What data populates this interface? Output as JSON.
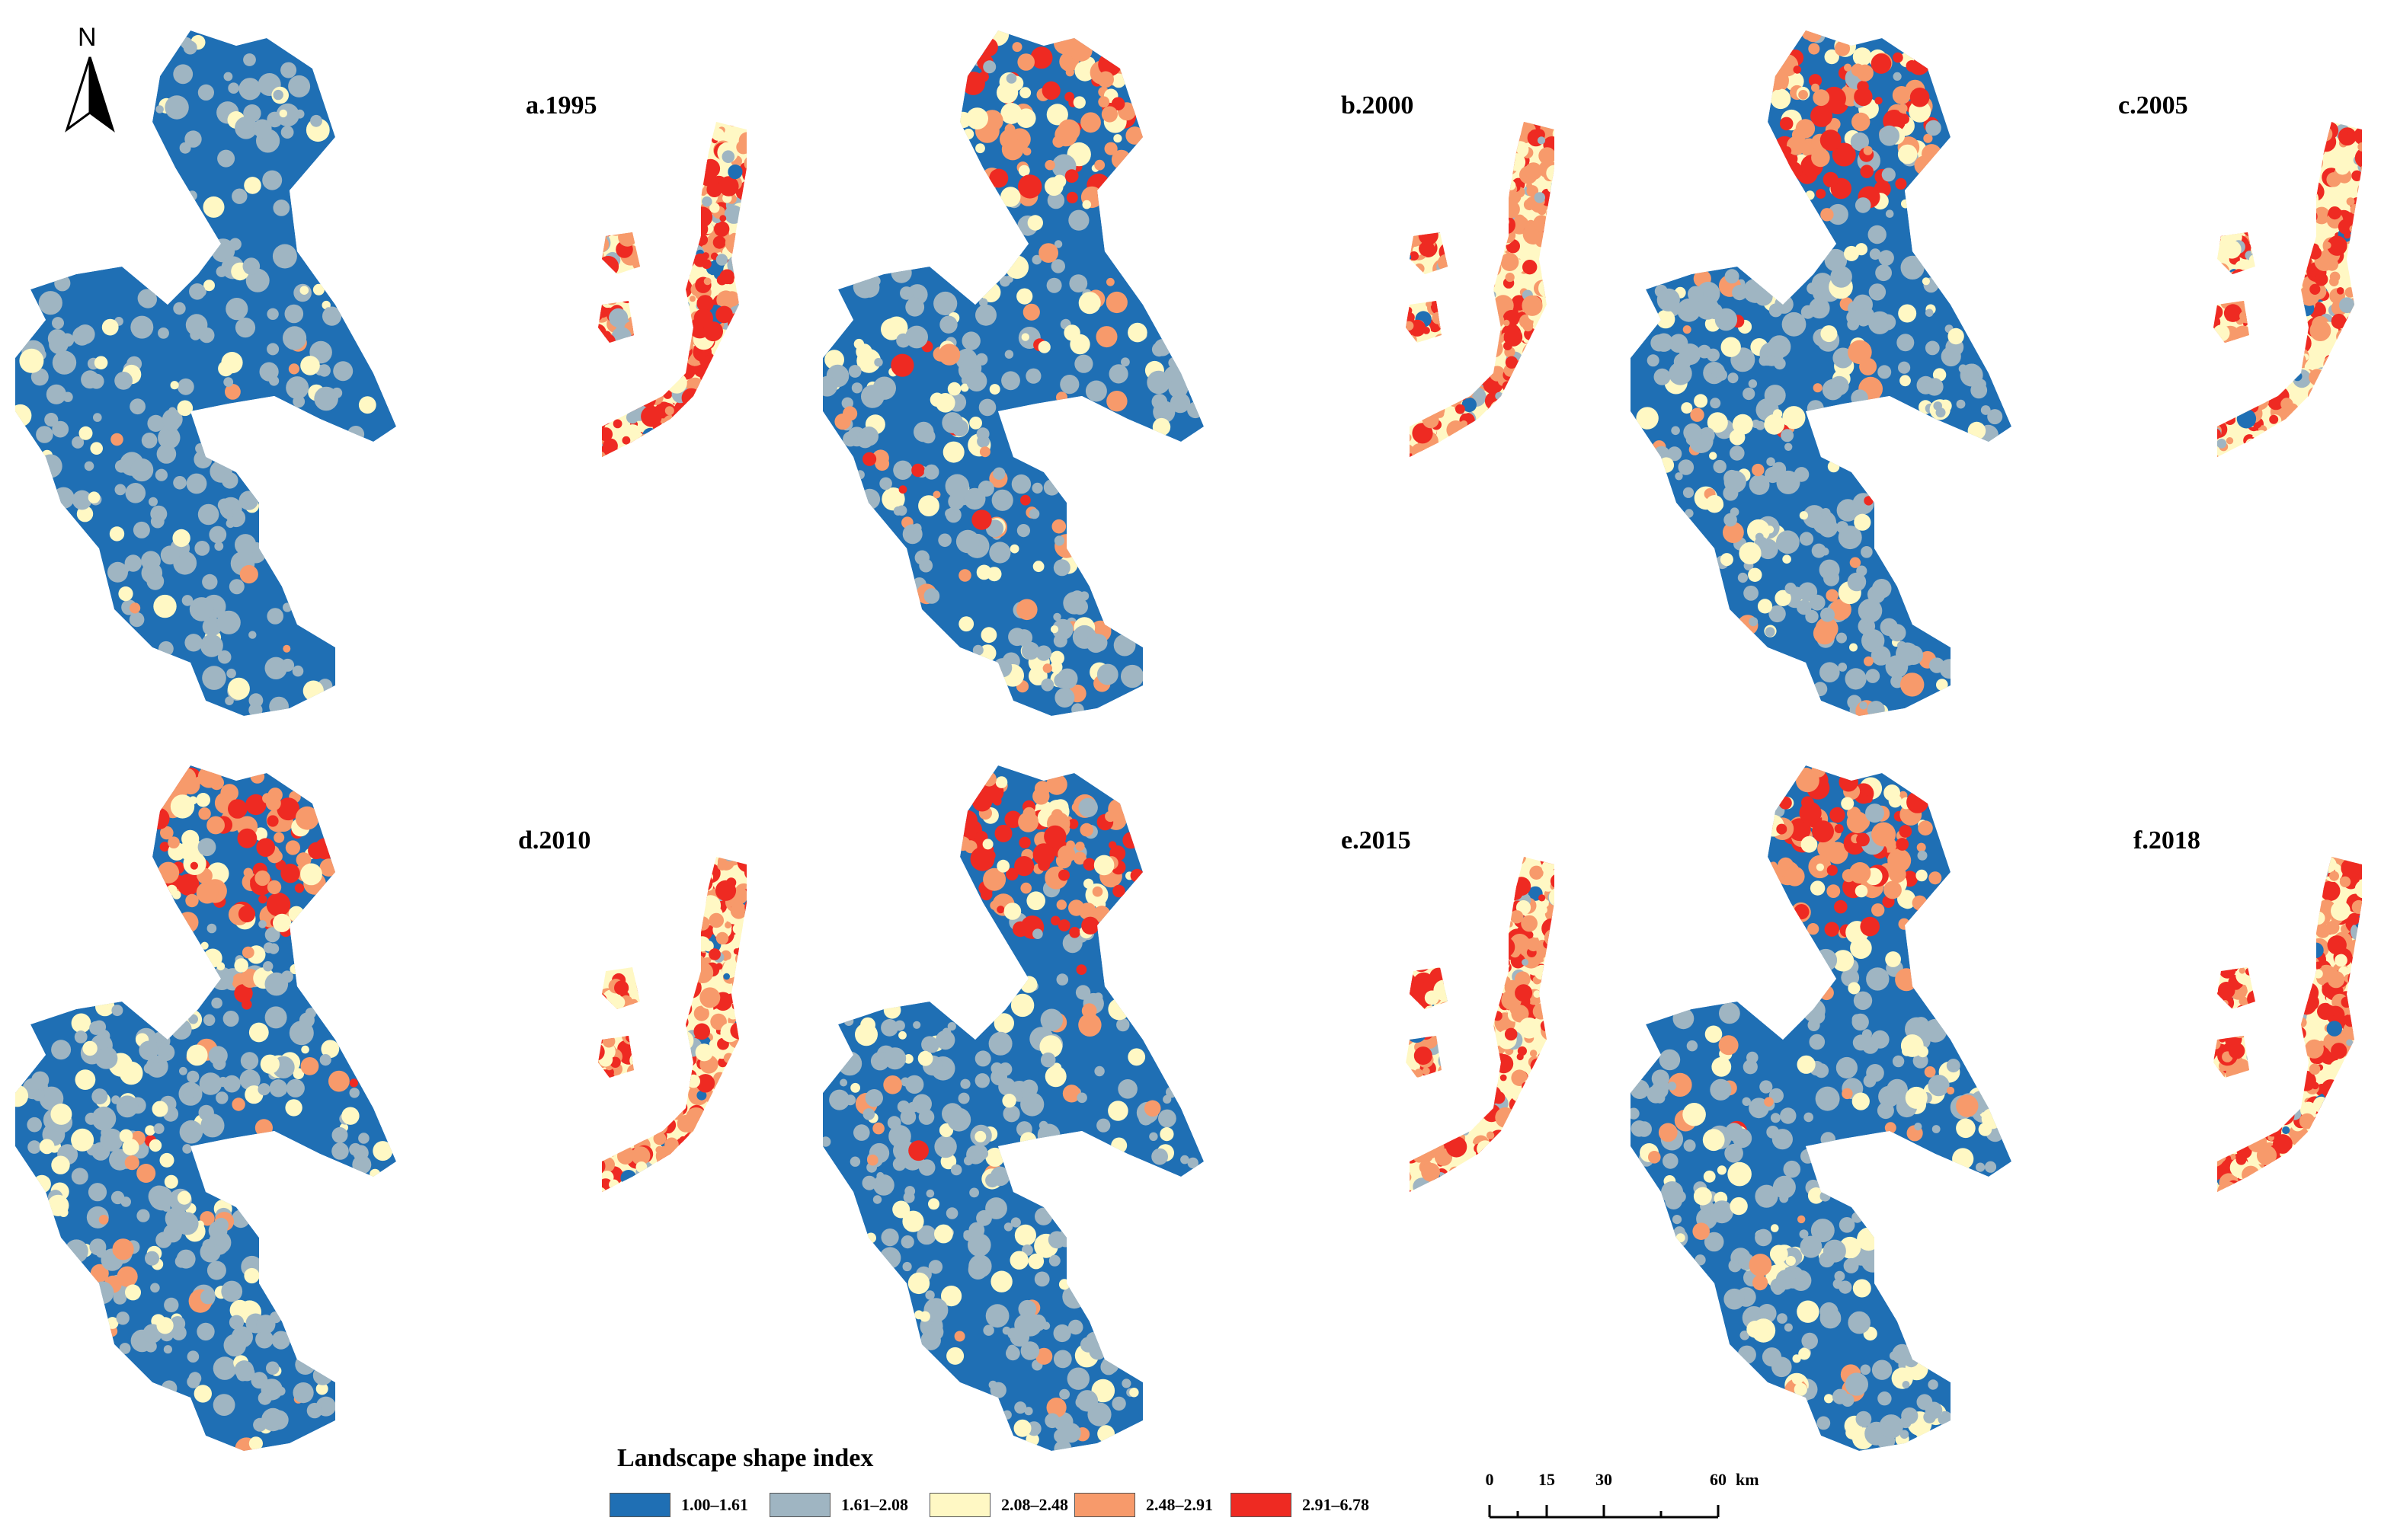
{
  "north_arrow": {
    "letter": "N"
  },
  "panels": [
    {
      "label": "a.1995",
      "mix": [
        0.62,
        0.3,
        0.06,
        0.02,
        0.0
      ],
      "east_mix": [
        0.05,
        0.1,
        0.15,
        0.35,
        0.35
      ]
    },
    {
      "label": "b.2000",
      "mix": [
        0.5,
        0.3,
        0.12,
        0.06,
        0.02
      ],
      "east_mix": [
        0.03,
        0.08,
        0.24,
        0.35,
        0.3
      ]
    },
    {
      "label": "c.2005",
      "mix": [
        0.45,
        0.38,
        0.12,
        0.04,
        0.01
      ],
      "east_mix": [
        0.03,
        0.06,
        0.2,
        0.36,
        0.35
      ]
    },
    {
      "label": "d.2010",
      "mix": [
        0.42,
        0.38,
        0.15,
        0.04,
        0.01
      ],
      "east_mix": [
        0.03,
        0.05,
        0.18,
        0.38,
        0.36
      ]
    },
    {
      "label": "e.2015",
      "mix": [
        0.44,
        0.37,
        0.14,
        0.04,
        0.01
      ],
      "east_mix": [
        0.03,
        0.05,
        0.18,
        0.38,
        0.36
      ]
    },
    {
      "label": "f.2018",
      "mix": [
        0.44,
        0.37,
        0.14,
        0.04,
        0.01
      ],
      "east_mix": [
        0.03,
        0.05,
        0.18,
        0.38,
        0.36
      ]
    }
  ],
  "legend": {
    "title": "Landscape shape index",
    "classes": [
      {
        "range": "1.00–1.61",
        "color": "#1f6fb4"
      },
      {
        "range": "1.61–2.08",
        "color": "#9fb5c2"
      },
      {
        "range": "2.08–2.48",
        "color": "#fff8c4"
      },
      {
        "range": "2.48–2.91",
        "color": "#f79a6b"
      },
      {
        "range": "2.91–6.78",
        "color": "#ee2a22"
      }
    ]
  },
  "scale_bar": {
    "ticks": [
      "0",
      "15",
      "30",
      "60"
    ],
    "unit": "km"
  }
}
